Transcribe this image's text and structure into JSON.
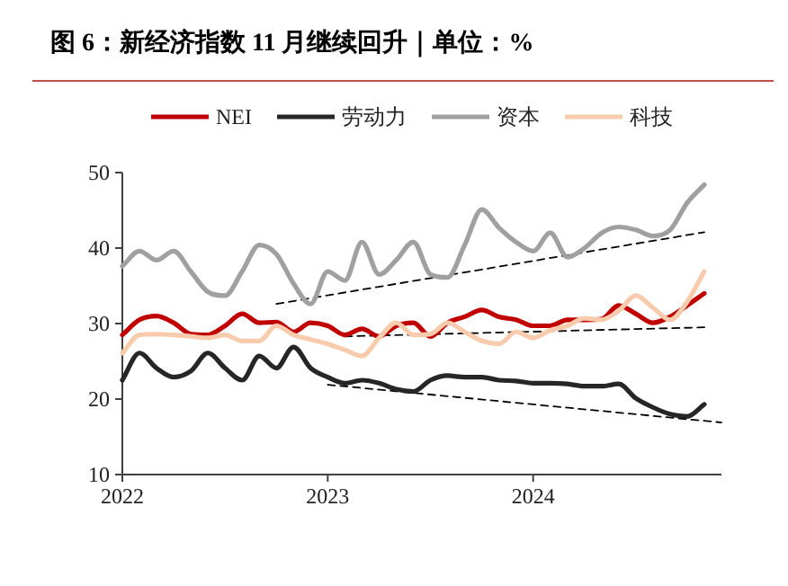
{
  "chart_data": {
    "type": "line",
    "title": "图 6：新经济指数 11 月继续回升｜单位：%",
    "legend": "top",
    "x": [
      "2022-01",
      "2022-02",
      "2022-03",
      "2022-04",
      "2022-05",
      "2022-06",
      "2022-07",
      "2022-08",
      "2022-09",
      "2022-10",
      "2022-11",
      "2022-12",
      "2023-01",
      "2023-02",
      "2023-03",
      "2023-04",
      "2023-05",
      "2023-06",
      "2023-07",
      "2023-08",
      "2023-09",
      "2023-10",
      "2023-11",
      "2023-12",
      "2024-01",
      "2024-02",
      "2024-03",
      "2024-04",
      "2024-05",
      "2024-06",
      "2024-07",
      "2024-08",
      "2024-09",
      "2024-10",
      "2024-11"
    ],
    "xlim": [
      "2022-01",
      "2024-12"
    ],
    "xticks": [
      "2022",
      "2023",
      "2024"
    ],
    "ylim": [
      10,
      50
    ],
    "yticks": [
      10,
      20,
      30,
      40,
      50
    ],
    "series": [
      {
        "name": "NEI",
        "color": "#c00000",
        "values": [
          28.5,
          30.5,
          31,
          30.1,
          28.6,
          28.5,
          29.7,
          31.3,
          30.1,
          30.2,
          28.9,
          30.1,
          29.7,
          28.5,
          29.3,
          28.3,
          29.7,
          30.1,
          28.3,
          30.1,
          30.9,
          31.8,
          30.9,
          30.5,
          29.7,
          29.7,
          30.5,
          30.5,
          30.6,
          32.4,
          31.3,
          30.1,
          30.9,
          32.4,
          34
        ]
      },
      {
        "name": "劳动力",
        "color": "#262626",
        "values": [
          22.5,
          26.1,
          24.1,
          22.9,
          23.7,
          26.1,
          24.1,
          22.5,
          25.7,
          24.1,
          26.9,
          24.1,
          22.9,
          22.1,
          22.5,
          22.1,
          21.3,
          21,
          22.5,
          23.1,
          22.9,
          22.9,
          22.5,
          22.4,
          22.1,
          22.1,
          22,
          21.7,
          21.7,
          22,
          20.1,
          18.9,
          18,
          17.7,
          19.3
        ]
      },
      {
        "name": "资本",
        "color": "#a0a0a0",
        "values": [
          37.6,
          39.6,
          38.4,
          39.6,
          36.9,
          34.2,
          33.7,
          36.9,
          40.4,
          39.2,
          35.3,
          32.6,
          36.9,
          35.7,
          40.8,
          36.5,
          38.4,
          40.8,
          36.5,
          36.1,
          40.4,
          45.1,
          42.7,
          40.8,
          39.6,
          42,
          38.8,
          40,
          42,
          42.8,
          42.4,
          41.6,
          42.4,
          46,
          48.4
        ]
      },
      {
        "name": "科技",
        "color": "#f8cbad",
        "values": [
          26.1,
          28.5,
          28.6,
          28.5,
          28.3,
          28.1,
          28.5,
          27.7,
          27.7,
          29.7,
          28.5,
          27.9,
          27.3,
          26.5,
          25.7,
          28.1,
          30.1,
          28.5,
          28.6,
          30.1,
          28.9,
          27.7,
          27.3,
          28.9,
          28.1,
          29.1,
          29.7,
          30.7,
          30.5,
          31.7,
          33.7,
          32.1,
          30.5,
          32.9,
          36.9
        ]
      },
      {
        "type": "line",
        "color": "#000000",
        "line_style": "dashed",
        "x": [
          "2022-10",
          "2024-11"
        ],
        "values": [
          32.6,
          42.1
        ]
      },
      {
        "type": "line",
        "color": "#000000",
        "line_style": "dashed",
        "x": [
          "2023-02",
          "2024-11"
        ],
        "values": [
          28.3,
          29.5
        ]
      },
      {
        "type": "line",
        "color": "#000000",
        "line_style": "dashed",
        "x": [
          "2023-01",
          "2024-12"
        ],
        "values": [
          21.9,
          16.9
        ]
      }
    ]
  }
}
